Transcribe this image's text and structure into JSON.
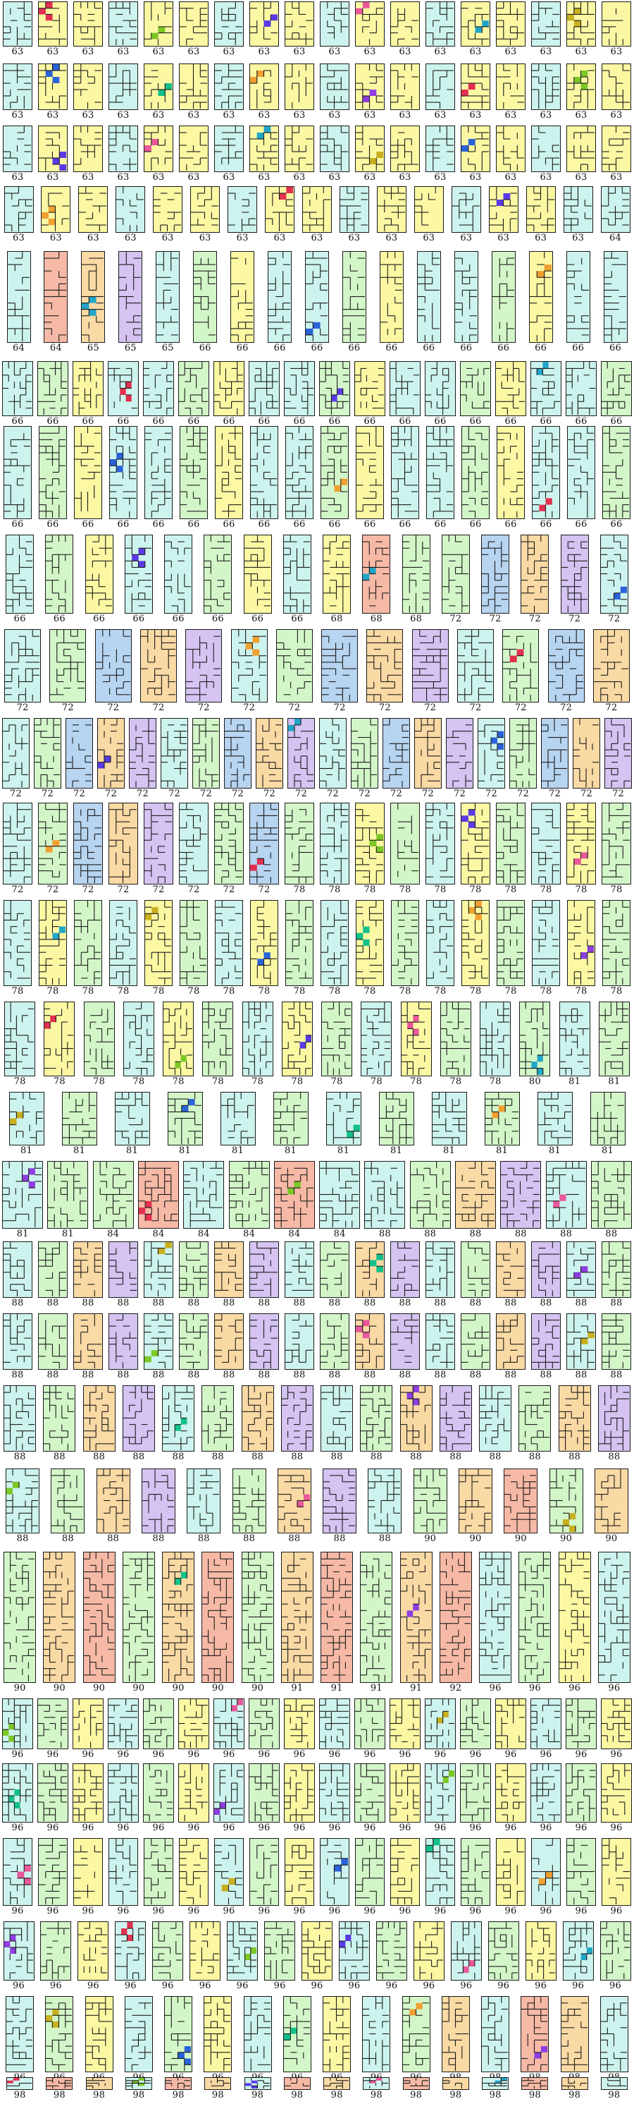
{
  "palette": {
    "background": "#ffffff",
    "wall": "#1a1a1a",
    "fills": {
      "aqua": "#cdf3ee",
      "yellow": "#fbf7a3",
      "mint": "#d3f6c8",
      "salmon": "#f6b9a6",
      "peach": "#f9d9a4",
      "lavender": "#d5c3f2",
      "blue": "#b7d4f0"
    },
    "highlights": [
      "#2a63d8",
      "#13c08a",
      "#f0a030",
      "#8e3ee0",
      "#e23050",
      "#7bc826",
      "#5a3ae6",
      "#e8589a",
      "#22a6c8",
      "#c8b020"
    ]
  },
  "rows": [
    {
      "labels": [
        "63",
        "63",
        "63",
        "63",
        "63",
        "63",
        "63",
        "63",
        "63",
        "63",
        "63",
        "63",
        "63",
        "63",
        "63",
        "63",
        "63",
        "63"
      ]
    },
    {
      "labels": [
        "63",
        "63",
        "63",
        "63",
        "63",
        "63",
        "63",
        "63",
        "63",
        "63",
        "63",
        "63",
        "63",
        "63",
        "63",
        "63",
        "63",
        "63"
      ]
    },
    {
      "labels": [
        "63",
        "63",
        "63",
        "63",
        "63",
        "63",
        "63",
        "63",
        "63",
        "63",
        "63",
        "63",
        "63",
        "63",
        "63",
        "63",
        "63",
        "63"
      ]
    },
    {
      "labels": [
        "63",
        "63",
        "63",
        "63",
        "63",
        "63",
        "63",
        "63",
        "63",
        "63",
        "63",
        "63",
        "63",
        "63",
        "63",
        "63",
        "64"
      ]
    },
    {
      "labels": [
        "64",
        "64",
        "65",
        "65",
        "65",
        "66",
        "66",
        "66",
        "66",
        "66",
        "66",
        "66",
        "66",
        "66",
        "66",
        "66",
        "66"
      ]
    },
    {
      "labels": [
        "66",
        "66",
        "66",
        "66",
        "66",
        "66",
        "66",
        "66",
        "66",
        "66",
        "66",
        "66",
        "66",
        "66",
        "66",
        "66",
        "66",
        "66"
      ]
    },
    {
      "labels": [
        "66",
        "66",
        "66",
        "66",
        "66",
        "66",
        "66",
        "66",
        "66",
        "66",
        "66",
        "66",
        "66",
        "66",
        "66",
        "66",
        "66",
        "66"
      ]
    },
    {
      "labels": [
        "66",
        "66",
        "66",
        "66",
        "66",
        "66",
        "66",
        "66",
        "68",
        "68",
        "68",
        "72",
        "72",
        "72",
        "72",
        "72"
      ]
    },
    {
      "labels": [
        "72",
        "72",
        "72",
        "72",
        "72",
        "72",
        "72",
        "72",
        "72",
        "72",
        "72",
        "72",
        "72",
        "72"
      ]
    },
    {
      "labels": [
        "72",
        "72",
        "72",
        "72",
        "72",
        "72",
        "72",
        "72",
        "72",
        "72",
        "72",
        "72",
        "72",
        "72",
        "72",
        "72",
        "72",
        "72",
        "72",
        "72"
      ]
    },
    {
      "labels": [
        "72",
        "72",
        "72",
        "72",
        "72",
        "72",
        "72",
        "72",
        "78",
        "78",
        "78",
        "78",
        "78",
        "78",
        "78",
        "78",
        "78",
        "78"
      ]
    },
    {
      "labels": [
        "78",
        "78",
        "78",
        "78",
        "78",
        "78",
        "78",
        "78",
        "78",
        "78",
        "78",
        "78",
        "78",
        "78",
        "78",
        "78",
        "78",
        "78"
      ]
    },
    {
      "labels": [
        "78",
        "78",
        "78",
        "78",
        "78",
        "78",
        "78",
        "78",
        "78",
        "78",
        "78",
        "78",
        "78",
        "80",
        "81",
        "81"
      ]
    },
    {
      "labels": [
        "81",
        "81",
        "81",
        "81",
        "81",
        "81",
        "81",
        "81",
        "81",
        "81",
        "81",
        "81"
      ]
    },
    {
      "labels": [
        "81",
        "81",
        "84",
        "84",
        "84",
        "84",
        "84",
        "84",
        "88",
        "88",
        "88",
        "88",
        "88",
        "88"
      ]
    },
    {
      "labels": [
        "88",
        "88",
        "88",
        "88",
        "88",
        "88",
        "88",
        "88",
        "88",
        "88",
        "88",
        "88",
        "88",
        "88",
        "88",
        "88",
        "88",
        "88"
      ]
    },
    {
      "labels": [
        "88",
        "88",
        "88",
        "88",
        "88",
        "88",
        "88",
        "88",
        "88",
        "88",
        "88",
        "88",
        "88",
        "88",
        "88",
        "88",
        "88",
        "88"
      ]
    },
    {
      "labels": [
        "88",
        "88",
        "88",
        "88",
        "88",
        "88",
        "88",
        "88",
        "88",
        "88",
        "88",
        "88",
        "88",
        "88",
        "88",
        "88"
      ]
    },
    {
      "labels": [
        "88",
        "88",
        "88",
        "88",
        "88",
        "88",
        "88",
        "88",
        "88",
        "90",
        "90",
        "90",
        "90",
        "90"
      ]
    },
    {
      "labels": [
        "90",
        "90",
        "90",
        "90",
        "90",
        "90",
        "90",
        "91",
        "91",
        "91",
        "91",
        "92",
        "96",
        "96",
        "96",
        "96"
      ]
    },
    {
      "labels": [
        "96",
        "96",
        "96",
        "96",
        "96",
        "96",
        "96",
        "96",
        "96",
        "96",
        "96",
        "96",
        "96",
        "96",
        "96",
        "96",
        "96",
        "96"
      ]
    },
    {
      "labels": [
        "96",
        "96",
        "96",
        "96",
        "96",
        "96",
        "96",
        "96",
        "96",
        "96",
        "96",
        "96",
        "96",
        "96",
        "96",
        "96",
        "96",
        "96"
      ]
    },
    {
      "labels": [
        "96",
        "96",
        "96",
        "96",
        "96",
        "96",
        "96",
        "96",
        "96",
        "96",
        "96",
        "96",
        "96",
        "96",
        "96",
        "96",
        "96",
        "96"
      ]
    },
    {
      "labels": [
        "96",
        "96",
        "96",
        "96",
        "96",
        "96",
        "96",
        "96",
        "96",
        "96",
        "96",
        "96",
        "96",
        "96",
        "96",
        "96",
        "96"
      ]
    },
    {
      "labels": [
        "96",
        "96",
        "96",
        "96",
        "96",
        "96",
        "96",
        "96",
        "96",
        "96",
        "96",
        "98",
        "98",
        "98",
        "98",
        "98"
      ]
    },
    {
      "labels": [
        "98",
        "98",
        "98",
        "98",
        "98",
        "98",
        "98",
        "98",
        "98",
        "98",
        "98",
        "98",
        "98",
        "98",
        "98",
        "98"
      ]
    }
  ]
}
